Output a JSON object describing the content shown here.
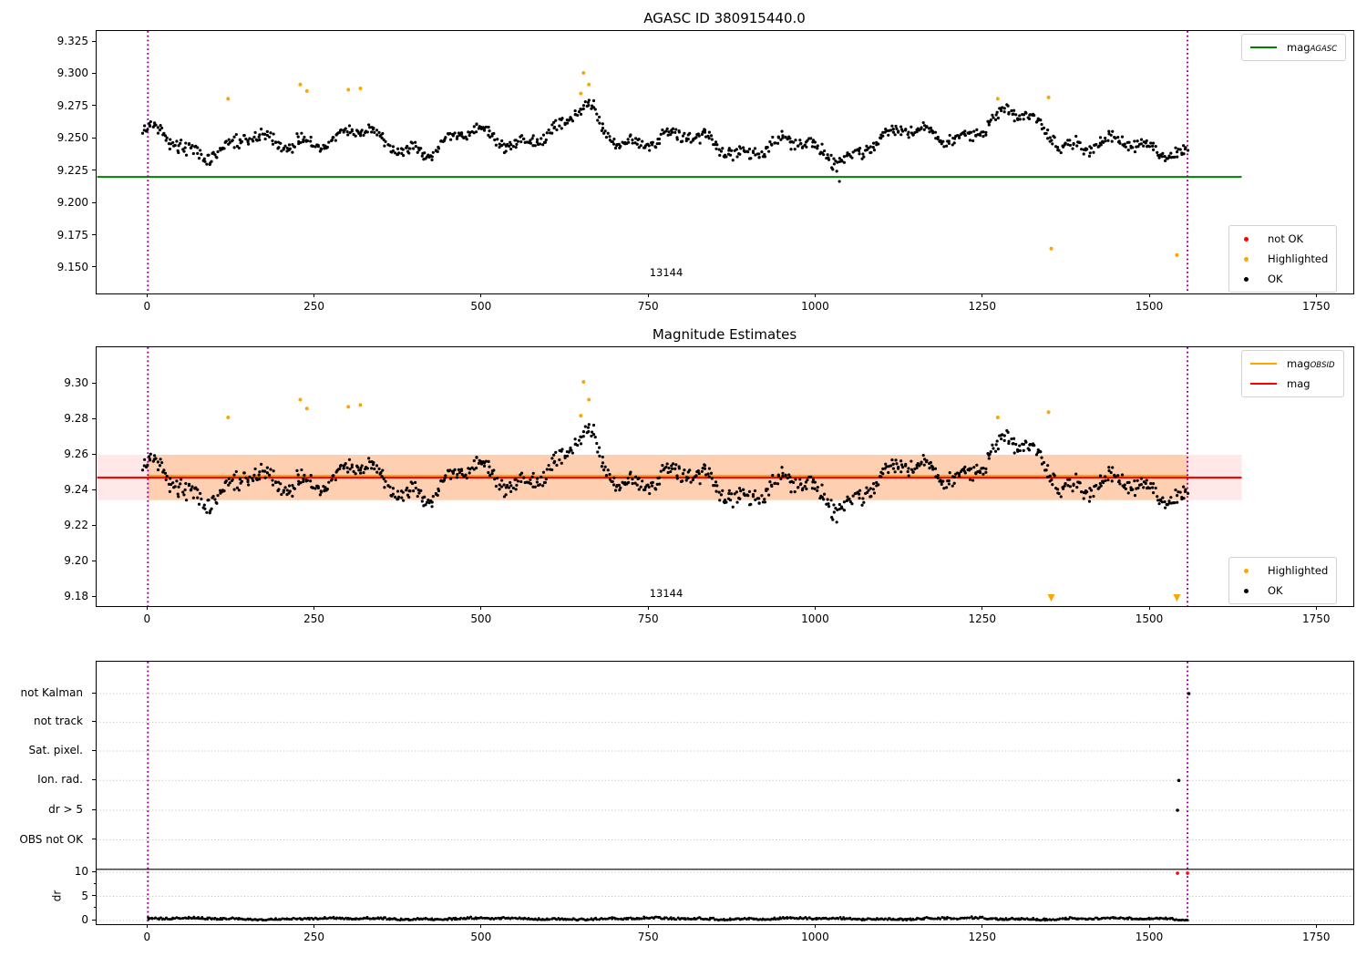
{
  "colors": {
    "green": "#008000",
    "red": "#ff0000",
    "orange": "#ffa500",
    "black": "#000000",
    "purple": "#990099",
    "band_outer": "rgba(255,80,70,0.13)",
    "band_inner": "rgba(255,145,40,0.28)",
    "grid": "#bbbbbb",
    "legend_border": "#d2d2d2"
  },
  "plot1": {
    "title": "AGASC ID 380915440.0",
    "obsid": "13144",
    "legend_line": {
      "main": "mag",
      "sub": "AGASC"
    },
    "legend_markers": [
      {
        "label": "not OK",
        "color": "#ff0000"
      },
      {
        "label": "Highlighted",
        "color": "#ffa500"
      },
      {
        "label": "OK",
        "color": "#000000"
      }
    ]
  },
  "plot2": {
    "title": "Magnitude Estimates",
    "obsid": "13144",
    "legend_lines": [
      {
        "main": "mag",
        "sub": "OBSID",
        "color": "#ffa500"
      },
      {
        "main": "mag",
        "sub": "",
        "color": "#ff0000"
      }
    ],
    "legend_markers": [
      {
        "label": "Highlighted",
        "color": "#ffa500"
      },
      {
        "label": "OK",
        "color": "#000000"
      }
    ]
  },
  "plot3": {
    "dr_label": "dr"
  },
  "chart_data": [
    {
      "type": "scatter",
      "title": "AGASC ID 380915440.0",
      "xlabel": "",
      "ylabel": "",
      "xlim": [
        -76,
        1806
      ],
      "ylim": [
        9.1296,
        9.3335
      ],
      "xticks": [
        0,
        250,
        500,
        750,
        1000,
        1250,
        1500,
        1750
      ],
      "yticks": [
        9.15,
        9.175,
        9.2,
        9.225,
        9.25,
        9.275,
        9.3,
        9.325
      ],
      "legend": [
        "mag_AGASC",
        "not OK",
        "Highlighted",
        "OK"
      ],
      "agasc_line": {
        "value": 9.2205,
        "x_start": -76,
        "x_end": 1637
      },
      "obs_vlines": [
        0,
        1556
      ],
      "obsid_annotation": {
        "text": "13144",
        "x": 778,
        "y": 9.133
      },
      "ok_synthesis": {
        "seed": 13144,
        "n": 940,
        "x_range": [
          -8,
          1556
        ],
        "base": 9.25,
        "noise": 0.0072,
        "waves": [
          [
            700,
            0.006,
            2.6
          ],
          [
            163,
            0.0062,
            1.9
          ],
          [
            55,
            0.0035,
            0.4
          ]
        ],
        "bumps": [
          [
            655,
            14,
            0.016
          ],
          [
            235,
            28,
            0.008
          ],
          [
            308,
            20,
            0.007
          ],
          [
            1295,
            40,
            0.009
          ],
          [
            95,
            26,
            -0.008
          ],
          [
            430,
            38,
            -0.006
          ],
          [
            1025,
            32,
            -0.007
          ],
          [
            1445,
            75,
            -0.007
          ],
          [
            540,
            30,
            -0.005
          ]
        ],
        "clamp": [
          9.215,
          9.29
        ]
      },
      "ok_extra": [
        [
          1035,
          9.217
        ]
      ],
      "highlighted": [
        [
          120,
          9.281
        ],
        [
          228,
          9.292
        ],
        [
          238,
          9.287
        ],
        [
          300,
          9.288
        ],
        [
          318,
          9.289
        ],
        [
          648,
          9.285
        ],
        [
          652,
          9.301
        ],
        [
          660,
          9.292
        ],
        [
          1272,
          9.281
        ],
        [
          1348,
          9.282
        ],
        [
          1352,
          9.165
        ],
        [
          1540,
          9.16
        ]
      ],
      "not_ok": []
    },
    {
      "type": "scatter",
      "title": "Magnitude Estimates",
      "xlabel": "",
      "ylabel": "",
      "xlim": [
        -76,
        1806
      ],
      "ylim": [
        9.1738,
        9.3205
      ],
      "xticks": [
        0,
        250,
        500,
        750,
        1000,
        1250,
        1500,
        1750
      ],
      "yticks": [
        9.18,
        9.2,
        9.22,
        9.24,
        9.26,
        9.28,
        9.3
      ],
      "legend": [
        "mag_OBSID",
        "mag",
        "Highlighted",
        "OK"
      ],
      "mag_line": {
        "value": 9.2472,
        "x_start": -76,
        "x_end": 1637
      },
      "mag_band": {
        "lo": 9.2345,
        "hi": 9.26,
        "x_start": -76,
        "x_end": 1637
      },
      "obsid_band": {
        "lo": 9.2345,
        "hi": 9.26,
        "x_start": 0,
        "x_end": 1556
      },
      "obsid_line": {
        "value": 9.2483,
        "x_start": 0,
        "x_end": 1556
      },
      "obs_vlines": [
        0,
        1556
      ],
      "obsid_annotation": {
        "text": "13144",
        "x": 778,
        "y": 9.177
      },
      "ok_synthesis": {
        "seed": 13144,
        "n": 940,
        "x_range": [
          -8,
          1556
        ],
        "base": 9.2472,
        "noise": 0.0072,
        "waves": [
          [
            700,
            0.006,
            2.6
          ],
          [
            163,
            0.0062,
            1.9
          ],
          [
            55,
            0.0035,
            0.4
          ]
        ],
        "bumps": [
          [
            655,
            14,
            0.016
          ],
          [
            235,
            28,
            0.008
          ],
          [
            308,
            20,
            0.007
          ],
          [
            1295,
            40,
            0.009
          ],
          [
            95,
            26,
            -0.008
          ],
          [
            430,
            38,
            -0.006
          ],
          [
            1025,
            32,
            -0.007
          ],
          [
            1445,
            75,
            -0.007
          ],
          [
            540,
            30,
            -0.005
          ]
        ],
        "clamp": [
          9.208,
          9.287
        ]
      },
      "ok_extra": [],
      "highlighted": [
        [
          120,
          9.281
        ],
        [
          228,
          9.291
        ],
        [
          238,
          9.286
        ],
        [
          300,
          9.287
        ],
        [
          318,
          9.288
        ],
        [
          648,
          9.282
        ],
        [
          652,
          9.301
        ],
        [
          660,
          9.291
        ],
        [
          1272,
          9.281
        ],
        [
          1348,
          9.284
        ]
      ],
      "below_range_markers": [
        1352,
        1540
      ]
    },
    {
      "type": "scatter",
      "title": "",
      "xlabel": "",
      "ylabel": "dr",
      "xlim": [
        -76,
        1806
      ],
      "xticks": [
        0,
        250,
        500,
        750,
        1000,
        1250,
        1500,
        1750
      ],
      "flag_categories": [
        "not Kalman",
        "not track",
        "Sat. pixel.",
        "Ion. rad.",
        "dr > 5",
        "OBS not OK"
      ],
      "flag_points": [
        {
          "category": "not Kalman",
          "x": 1558,
          "color": "black"
        },
        {
          "category": "Ion. rad.",
          "x": 1543,
          "color": "black"
        },
        {
          "category": "dr > 5",
          "x": 1541,
          "color": "black"
        }
      ],
      "dr_ticks": [
        0,
        5,
        10
      ],
      "dr_minor_ticks": [
        2.5,
        7.5
      ],
      "separator_dr": 10.6,
      "dr_red_points": [
        [
          1541,
          9.8
        ],
        [
          1556,
          9.8
        ]
      ],
      "dr_strip": {
        "seed": 777,
        "n": 880,
        "x_range": [
          0,
          1556
        ],
        "base": 0.22,
        "spread": 0.22
      },
      "obs_vlines": [
        0,
        1556
      ],
      "grid": true
    }
  ]
}
